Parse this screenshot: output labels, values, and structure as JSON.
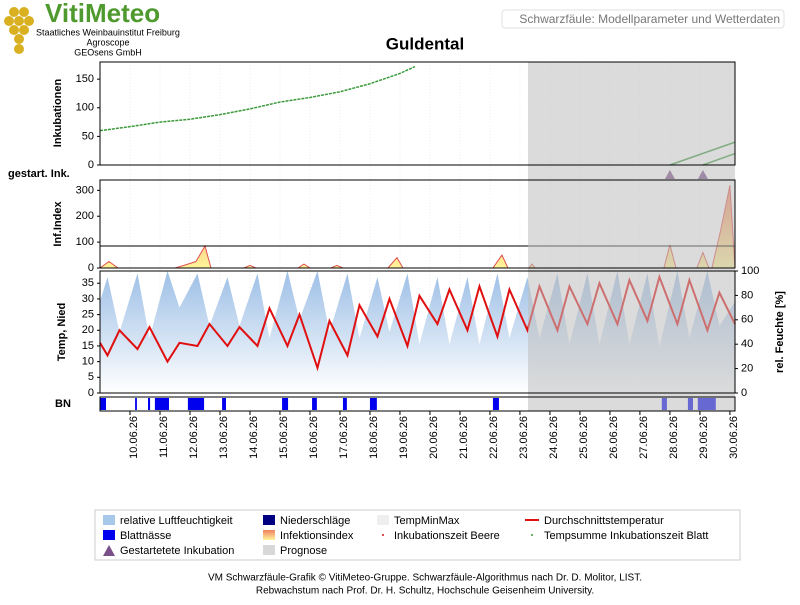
{
  "header": {
    "brand": "VitiMeteo",
    "org1": "Staatliches Weinbauinstitut Freiburg",
    "org2": "Agroscope",
    "org3": "GEOsens GmbH",
    "page_title": "Schwarzfäule: Modellparameter und Wetterdaten"
  },
  "chart_data": {
    "type": "line",
    "title": "Guldental",
    "xlim": [
      9,
      30.17
    ],
    "xticks": [
      {
        "value": 10,
        "label": "10.06.26"
      },
      {
        "value": 11,
        "label": "11.06.26"
      },
      {
        "value": 12,
        "label": "12.06.26"
      },
      {
        "value": 13,
        "label": "13.06.26"
      },
      {
        "value": 14,
        "label": "14.06.26"
      },
      {
        "value": 15,
        "label": "15.06.26"
      },
      {
        "value": 16,
        "label": "16.06.26"
      },
      {
        "value": 17,
        "label": "17.06.26"
      },
      {
        "value": 18,
        "label": "18.06.26"
      },
      {
        "value": 19,
        "label": "19.06.26"
      },
      {
        "value": 20,
        "label": "20.06.26"
      },
      {
        "value": 21,
        "label": "21.06.26"
      },
      {
        "value": 22,
        "label": "22.06.26"
      },
      {
        "value": 23,
        "label": "23.06.26"
      },
      {
        "value": 24,
        "label": "24.06.26"
      },
      {
        "value": 25,
        "label": "25.06.26"
      },
      {
        "value": 26,
        "label": "26.06.26"
      },
      {
        "value": 27,
        "label": "27.06.26"
      },
      {
        "value": 28,
        "label": "28.06.26"
      },
      {
        "value": 29,
        "label": "29.06.26"
      },
      {
        "value": 30,
        "label": "30.06.26"
      }
    ],
    "prognose_start": 23.27,
    "incubation": {
      "label": "Inkubationen",
      "ylim": [
        0,
        180
      ],
      "yticks": [
        0,
        50,
        100,
        150
      ],
      "color": "#3a9a3a",
      "x": [
        9,
        10,
        11,
        12,
        13,
        14,
        15,
        16,
        17,
        18,
        19,
        19.5
      ],
      "values": [
        60,
        67,
        75,
        80,
        88,
        98,
        110,
        118,
        128,
        142,
        160,
        172
      ],
      "started": [
        {
          "x": [
            28.0,
            30.17
          ],
          "values": [
            0,
            40
          ]
        },
        {
          "x": [
            29.1,
            30.17
          ],
          "values": [
            0,
            20
          ]
        }
      ]
    },
    "started_label": "gestart. Ink.",
    "started_markers": {
      "x": [
        28.0,
        29.1
      ],
      "color": "#7a4f8a"
    },
    "infection": {
      "label": "Inf.Index",
      "ylim": [
        0,
        340
      ],
      "yticks": [
        0,
        100,
        200,
        300
      ],
      "threshold": 85,
      "x": [
        9.0,
        9.3,
        9.6,
        11.5,
        11.8,
        12.2,
        12.5,
        12.7,
        13.8,
        14.0,
        14.2,
        15.6,
        15.8,
        16.0,
        16.7,
        16.9,
        17.1,
        18.6,
        18.9,
        19.1,
        22.1,
        22.4,
        22.6,
        23.3,
        23.4,
        23.5,
        27.8,
        28.0,
        28.2,
        28.9,
        29.1,
        29.3,
        29.4,
        29.7,
        30.0,
        30.17
      ],
      "values": [
        0,
        25,
        0,
        0,
        10,
        25,
        85,
        0,
        0,
        10,
        0,
        0,
        15,
        0,
        0,
        10,
        0,
        0,
        40,
        0,
        0,
        50,
        0,
        0,
        15,
        0,
        0,
        90,
        0,
        0,
        60,
        0,
        0,
        150,
        320,
        0
      ]
    },
    "weather": {
      "label": "Temp, Nied",
      "ylim": [
        0,
        38.9
      ],
      "yticks": [
        0,
        5,
        10,
        15,
        20,
        25,
        30,
        35
      ],
      "y2label": "rel. Feuchte [%]",
      "y2lim": [
        0,
        100
      ],
      "y2ticks": [
        0,
        20,
        40,
        60,
        80,
        100
      ],
      "x": [
        9.0,
        9.25,
        9.65,
        10.25,
        10.65,
        11.25,
        11.65,
        12.25,
        12.65,
        13.25,
        13.65,
        14.25,
        14.65,
        15.25,
        15.65,
        16.25,
        16.65,
        17.25,
        17.65,
        18.25,
        18.65,
        19.25,
        19.65,
        20.25,
        20.65,
        21.25,
        21.65,
        22.25,
        22.65,
        23.25,
        23.65,
        24.25,
        24.65,
        25.25,
        25.65,
        26.25,
        26.65,
        27.25,
        27.65,
        28.25,
        28.65,
        29.25,
        29.65,
        30.17
      ],
      "temperature": {
        "color": "#e01010",
        "values": [
          16,
          12,
          20,
          14,
          21,
          10,
          16,
          15,
          22,
          15,
          21,
          15,
          27,
          15,
          25,
          8,
          23,
          12,
          28,
          18,
          30,
          15,
          31,
          22,
          33,
          20,
          34,
          18,
          33,
          20,
          34,
          20,
          34,
          22,
          35,
          22,
          36,
          23,
          37,
          22,
          36,
          20,
          32,
          22
        ]
      },
      "humidity": {
        "color": "#a8c8ea",
        "values": [
          75,
          95,
          50,
          98,
          45,
          100,
          70,
          98,
          55,
          95,
          55,
          98,
          45,
          100,
          60,
          100,
          50,
          98,
          45,
          95,
          50,
          98,
          40,
          95,
          40,
          95,
          40,
          98,
          45,
          95,
          45,
          98,
          40,
          98,
          40,
          100,
          40,
          98,
          38,
          100,
          45,
          100,
          55,
          75
        ]
      }
    },
    "leaf_wetness": {
      "label": "BN",
      "color": "#0000ee",
      "start": [
        9.0,
        10.17,
        10.6,
        10.83,
        11.93,
        13.07,
        15.07,
        16.07,
        17.1,
        18.0,
        22.1,
        27.73,
        28.6,
        28.93
      ],
      "end": [
        9.2,
        10.23,
        10.67,
        11.3,
        12.47,
        13.2,
        15.27,
        16.23,
        17.23,
        18.23,
        22.3,
        27.9,
        28.77,
        29.53
      ]
    },
    "legend": [
      "relative Luftfeuchtigkeit",
      "Niederschläge",
      "TempMinMax",
      "Durchschnittstemperatur",
      "Blattnässe",
      "Infektionsindex",
      "Inkubationszeit Beere",
      "Tempsumme Inkubationszeit Blatt",
      "Gestartetete Inkubation",
      "Prognose"
    ]
  },
  "footer": {
    "line1": "VM Schwarzfäule-Grafik © VitiMeteo-Gruppe. Schwarzfäule-Algorithmus nach Dr. D. Molitor, LIST.",
    "line2": "Rebwachstum nach Prof. Dr. H. Schultz, Hochschule Geisenheim University."
  }
}
